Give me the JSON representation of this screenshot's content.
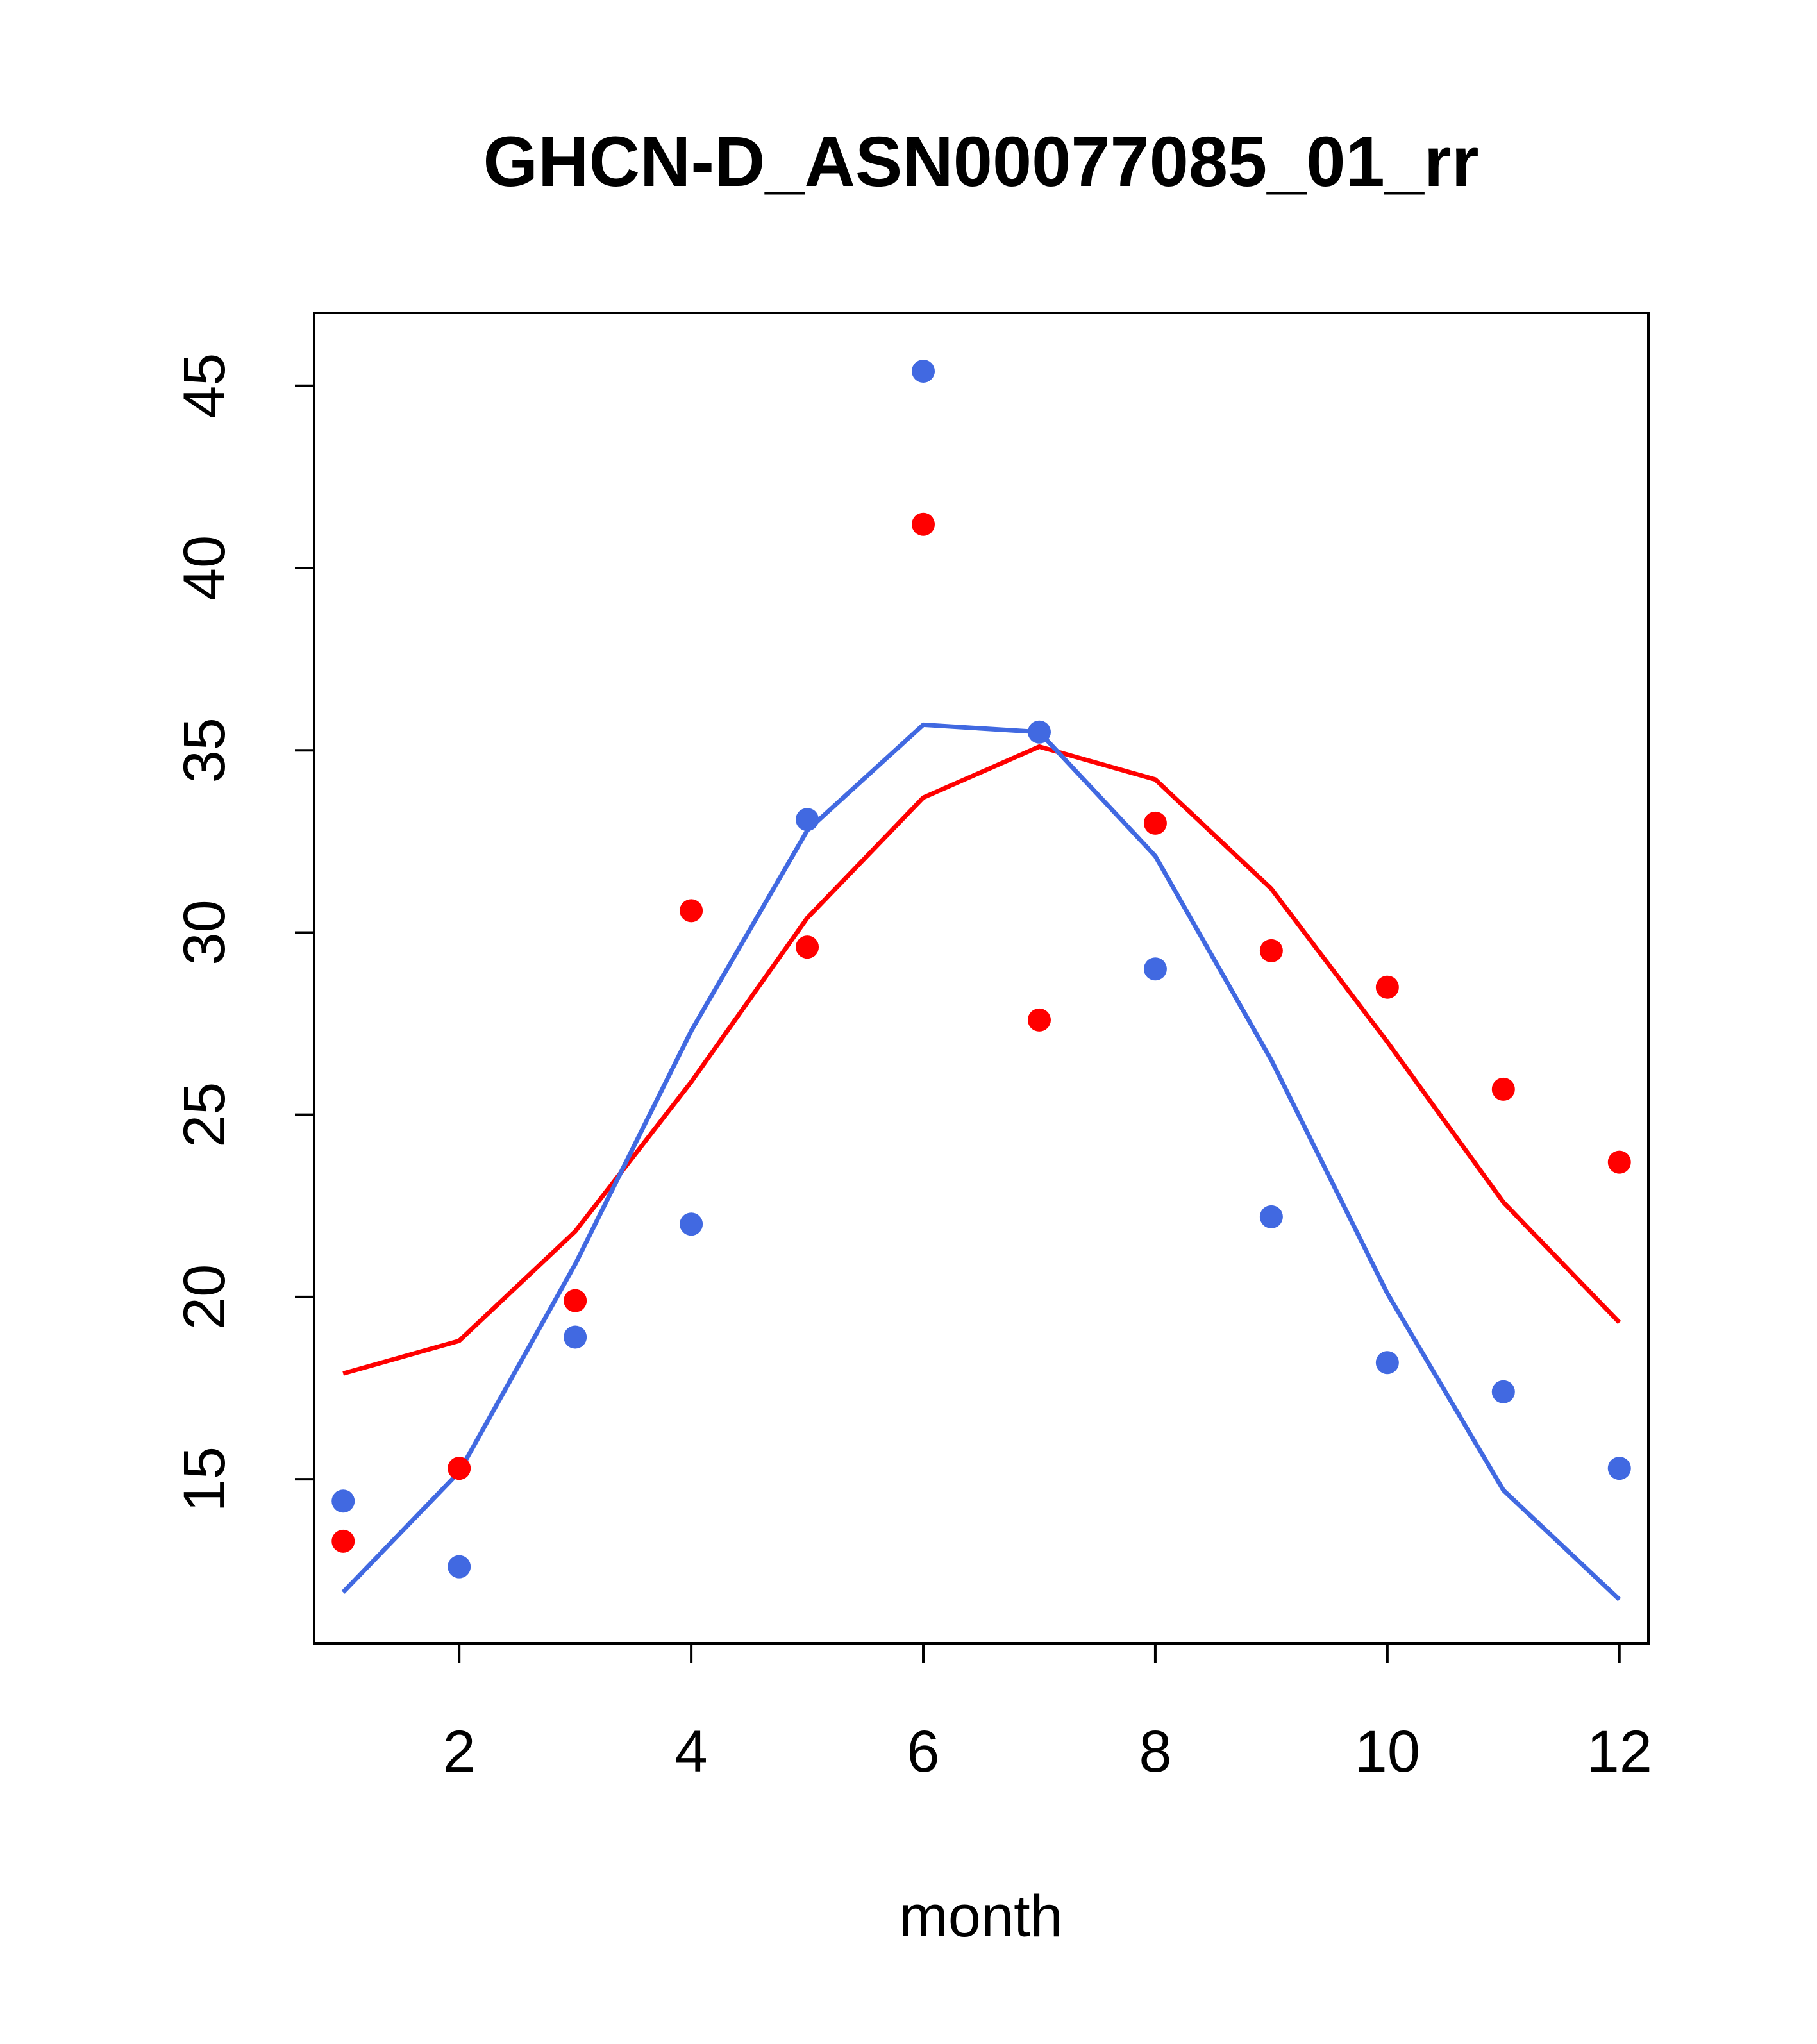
{
  "chart_data": {
    "type": "scatter",
    "title": "GHCN-D_ASN00077085_01_rr",
    "xlabel": "month",
    "ylabel": "",
    "xlim": [
      0.75,
      12.25
    ],
    "ylim": [
      10.5,
      47.0
    ],
    "x_ticks": [
      2,
      4,
      6,
      8,
      10,
      12
    ],
    "y_ticks": [
      15,
      20,
      25,
      30,
      35,
      40,
      45
    ],
    "grid": false,
    "colors": {
      "red": "#ff0000",
      "blue": "#4169e1"
    },
    "series": [
      {
        "color": "#ff0000",
        "kind": "points",
        "x": [
          1,
          2,
          3,
          4,
          5,
          6,
          7,
          8,
          9,
          10,
          11,
          12
        ],
        "values": [
          13.3,
          15.3,
          19.9,
          30.6,
          29.6,
          41.2,
          27.6,
          33.0,
          29.5,
          28.5,
          25.7,
          23.7
        ]
      },
      {
        "color": "#4169e1",
        "kind": "points",
        "x": [
          1,
          2,
          3,
          4,
          5,
          6,
          7,
          8,
          9,
          10,
          11,
          12
        ],
        "values": [
          14.4,
          12.6,
          18.9,
          22.0,
          33.1,
          45.4,
          35.5,
          29.0,
          22.2,
          18.2,
          17.4,
          15.3
        ]
      },
      {
        "color": "#ff0000",
        "kind": "line",
        "x": [
          1,
          2,
          3,
          4,
          5,
          6,
          7,
          8,
          9,
          10,
          11,
          12
        ],
        "values": [
          17.9,
          18.8,
          21.8,
          25.9,
          30.4,
          33.7,
          35.1,
          34.2,
          31.2,
          27.0,
          22.6,
          19.3
        ]
      },
      {
        "color": "#4169e1",
        "kind": "line",
        "x": [
          1,
          2,
          3,
          4,
          5,
          6,
          7,
          8,
          9,
          10,
          11,
          12
        ],
        "values": [
          11.9,
          15.2,
          20.9,
          27.3,
          32.8,
          35.7,
          35.5,
          32.1,
          26.5,
          20.1,
          14.7,
          11.7
        ]
      }
    ]
  }
}
